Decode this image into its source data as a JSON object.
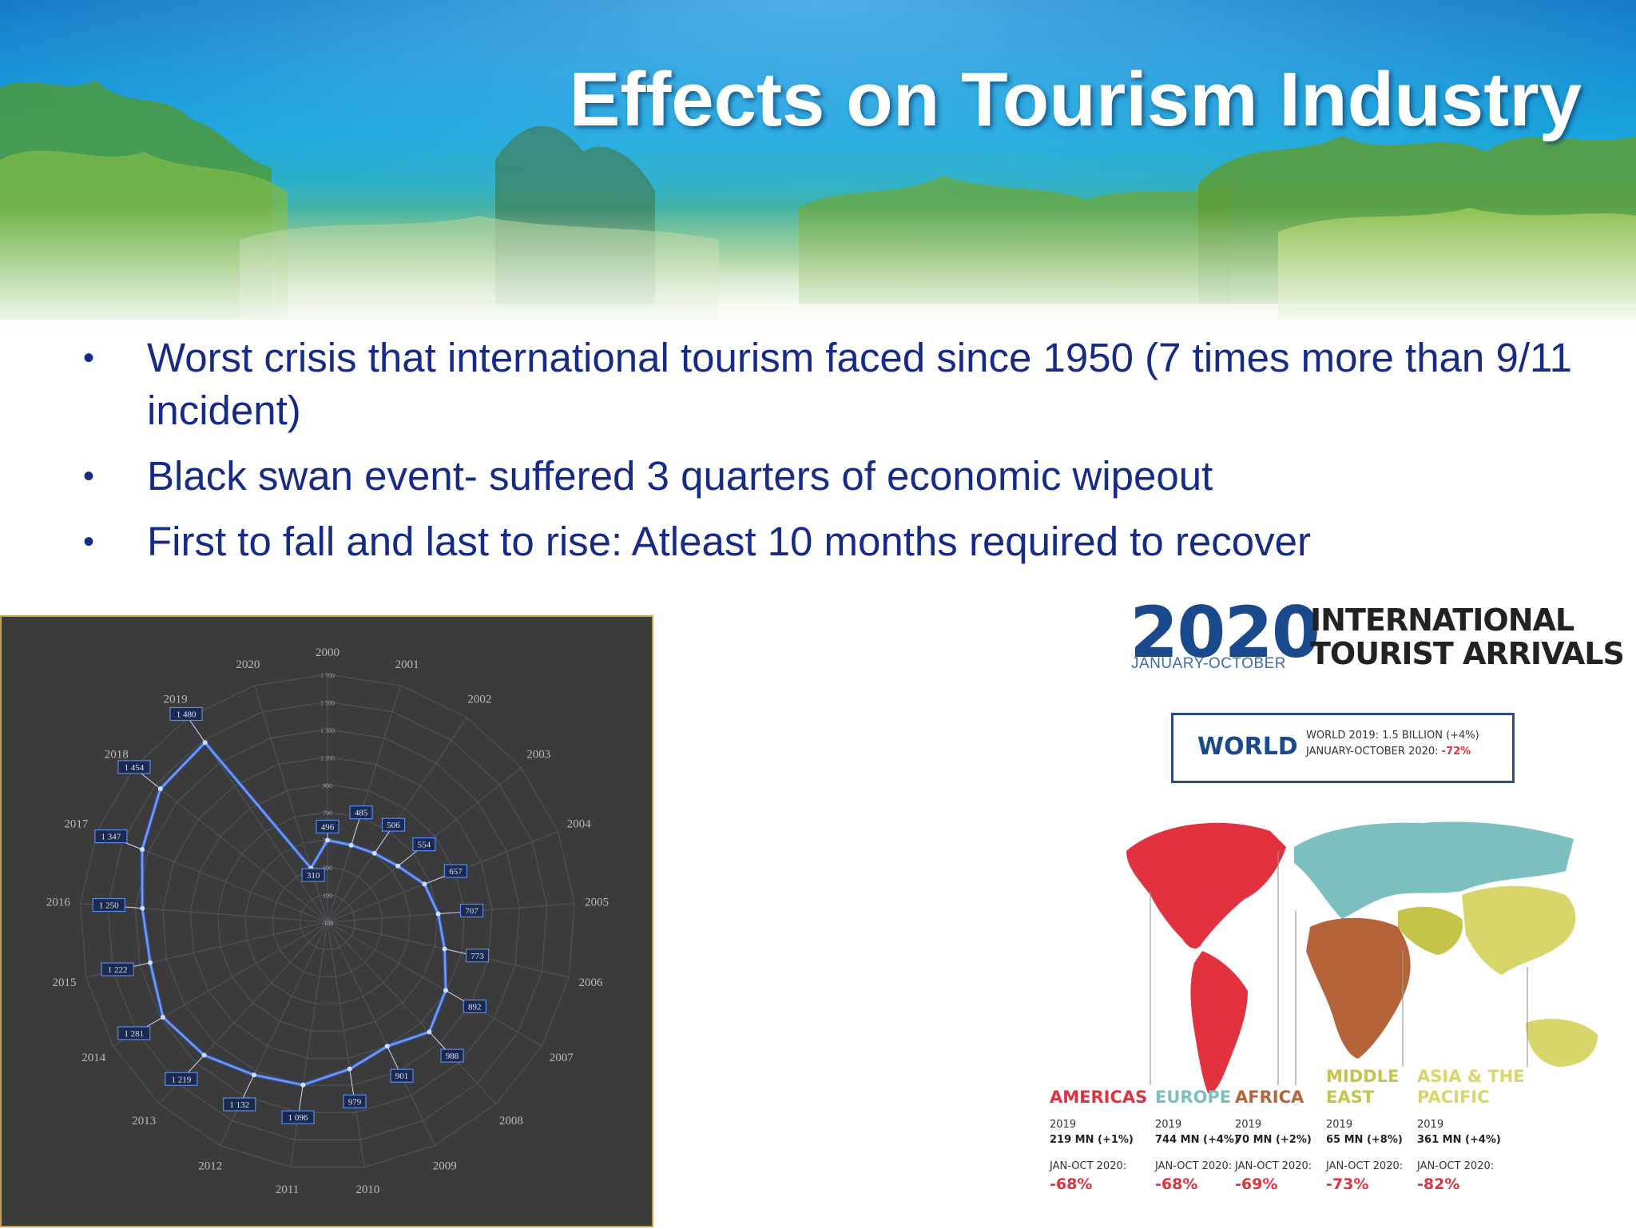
{
  "slide": {
    "title": "Effects on Tourism Industry",
    "bullets": [
      "Worst crisis that international tourism faced since 1950 (7 times more than 9/11 incident)",
      "Black swan event- suffered 3 quarters of economic wipeout",
      "First to fall and last to rise: Atleast 10 months required to recover"
    ],
    "bullet_char": "•"
  },
  "radar": {
    "ring_labels": [
      "1 700",
      "1 500",
      "1 300",
      "1 100",
      "900",
      "700",
      "500",
      "300",
      "100",
      "-100"
    ],
    "years": [
      "2000",
      "2001",
      "2002",
      "2003",
      "2004",
      "2005",
      "2006",
      "2007",
      "2008",
      "2009",
      "2010",
      "2011",
      "2012",
      "2013",
      "2014",
      "2015",
      "2016",
      "2017",
      "2018",
      "2019",
      "2020"
    ],
    "series": [
      {
        "year": "2000",
        "label": "496",
        "value": 496
      },
      {
        "year": "2001",
        "label": "485",
        "value": 485
      },
      {
        "year": "2002",
        "label": "506",
        "value": 506
      },
      {
        "year": "2003",
        "label": "554",
        "value": 554
      },
      {
        "year": "2004",
        "label": "657",
        "value": 657
      },
      {
        "year": "2005",
        "label": "707",
        "value": 707
      },
      {
        "year": "2006",
        "label": "773",
        "value": 773
      },
      {
        "year": "2007",
        "label": "892",
        "value": 892
      },
      {
        "year": "2008",
        "label": "988",
        "value": 988
      },
      {
        "year": "2009",
        "label": "901",
        "value": 901
      },
      {
        "year": "2010",
        "label": "979",
        "value": 979
      },
      {
        "year": "2011",
        "label": "1 096",
        "value": 1096
      },
      {
        "year": "2012",
        "label": "1 132",
        "value": 1132
      },
      {
        "year": "2013",
        "label": "1 219",
        "value": 1219
      },
      {
        "year": "2014",
        "label": "1 281",
        "value": 1281
      },
      {
        "year": "2015",
        "label": "1 222",
        "value": 1222
      },
      {
        "year": "2016",
        "label": "1 250",
        "value": 1250
      },
      {
        "year": "2017",
        "label": "1 347",
        "value": 1347
      },
      {
        "year": "2018",
        "label": "1 454",
        "value": 1454
      },
      {
        "year": "2019",
        "label": "1 480",
        "value": 1480
      },
      {
        "year": "2020",
        "label": "310",
        "value": 310
      }
    ],
    "color": "#2f6bff"
  },
  "infographic": {
    "year": "2020",
    "period": "JANUARY-OCTOBER",
    "heading_line1": "INTERNATIONAL",
    "heading_line2": "TOURIST ARRIVALS",
    "world": {
      "label": "WORLD",
      "line1": "WORLD 2019: 1.5 BILLION (+4%)",
      "line2_prefix": "JANUARY-OCTOBER 2020:",
      "line2_value": "-72%"
    },
    "regions": [
      {
        "name_line1": "AMERICAS",
        "name_line2": "",
        "color": "#e2323f",
        "year": "2019",
        "value": "219 MN (+1%)",
        "period": "JAN-OCT 2020:",
        "change": "-68%"
      },
      {
        "name_line1": "EUROPE",
        "name_line2": "",
        "color": "#7cbfbf",
        "year": "2019",
        "value": "744 MN (+4%)",
        "period": "JAN-OCT 2020:",
        "change": "-68%"
      },
      {
        "name_line1": "AFRICA",
        "name_line2": "",
        "color": "#b5643a",
        "year": "2019",
        "value": "70 MN (+2%)",
        "period": "JAN-OCT 2020:",
        "change": "-69%"
      },
      {
        "name_line1": "MIDDLE",
        "name_line2": "EAST",
        "color": "#c4c44a",
        "year": "2019",
        "value": "65 MN (+8%)",
        "period": "JAN-OCT 2020:",
        "change": "-73%"
      },
      {
        "name_line1": "ASIA & THE",
        "name_line2": "PACIFIC",
        "color": "#d8d66a",
        "year": "2019",
        "value": "361 MN (+4%)",
        "period": "JAN-OCT 2020:",
        "change": "-82%"
      }
    ]
  }
}
